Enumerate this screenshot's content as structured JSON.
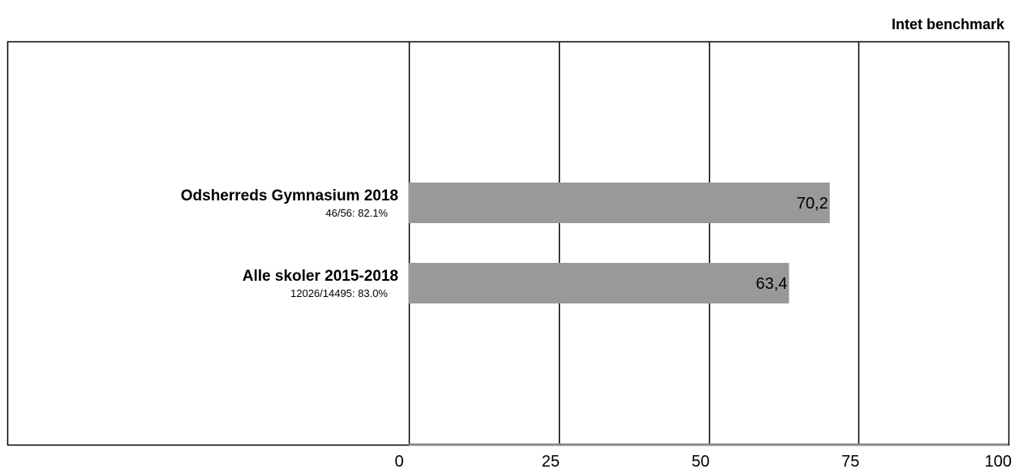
{
  "header": {
    "note": "Intet benchmark"
  },
  "chart_data": {
    "type": "bar",
    "orientation": "horizontal",
    "categories": [
      {
        "name": "Odsherreds Gymnasium 2018",
        "sub": "46/56: 82.1%"
      },
      {
        "name": "Alle skoler 2015-2018",
        "sub": "12026/14495: 83.0%"
      }
    ],
    "values": [
      70.2,
      63.4
    ],
    "value_labels": [
      "70,2",
      "63,4"
    ],
    "xlim": [
      0,
      100
    ],
    "xticks": [
      0,
      25,
      50,
      75,
      100
    ],
    "xtick_labels": [
      "0",
      "25",
      "50",
      "75",
      "100"
    ],
    "grid": "vertical",
    "bar_color": "#999999",
    "title": "",
    "xlabel": "",
    "ylabel": ""
  }
}
